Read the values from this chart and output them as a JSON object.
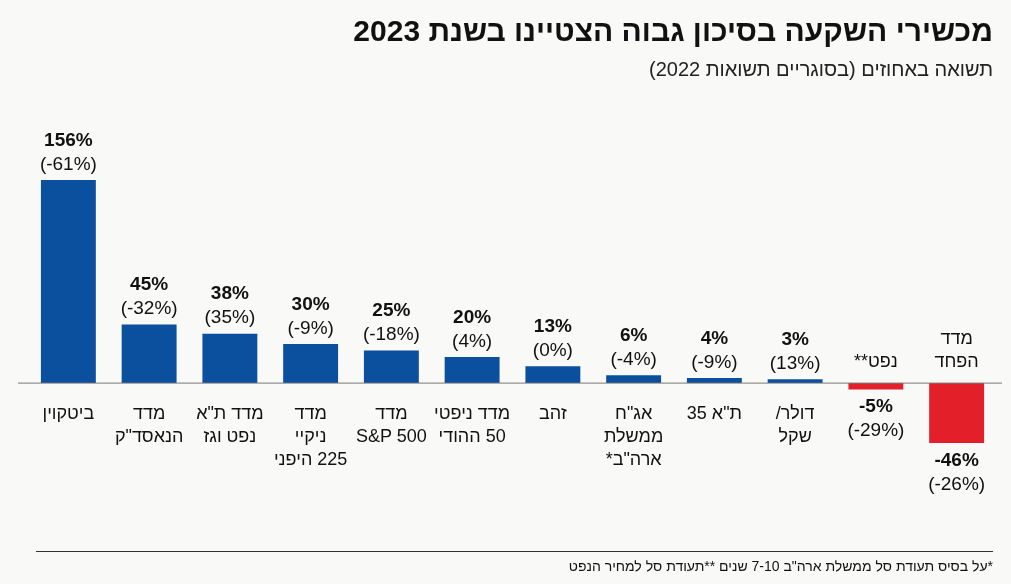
{
  "chart_data": {
    "type": "bar",
    "title": "מכשירי השקעה בסיכון גבוה הצטיינו בשנת 2023",
    "subtitle": "תשואה באחוזים (בסוגריים תשואות 2022)",
    "categories": [
      "ביטקוין",
      "מדד\nהנאסד\"ק",
      "מדד ת\"א\nנפט וגז",
      "מדד\nניקיי\n225 היפני",
      "מדד\nS&P 500",
      "מדד ניפטי\n50 ההודי",
      "זהב",
      "אג\"ח\nממשלת\nארה\"ב*",
      "ת\"א 35",
      "דולר/\nשקל",
      "נפט**",
      "מדד\nהפחד"
    ],
    "values": [
      156,
      45,
      38,
      30,
      25,
      20,
      13,
      6,
      4,
      3,
      -5,
      -46
    ],
    "colors": [
      "#0b4f9f",
      "#0b4f9f",
      "#0b4f9f",
      "#0b4f9f",
      "#0b4f9f",
      "#0b4f9f",
      "#0b4f9f",
      "#0b4f9f",
      "#0b4f9f",
      "#0b4f9f",
      "#e3202a",
      "#e3202a"
    ],
    "value_labels": [
      "156%\n(-61%)",
      "45%\n(-32%)",
      "38%\n(35%)",
      "30%\n(-9%)",
      "25%\n(-18%)",
      "20%\n(4%)",
      "13%\n(0%)",
      "6%\n(-4%)",
      "4%\n(-9%)",
      "3%\n(13%)",
      "-5%\n(-29%)",
      "-46%\n(-26%)"
    ],
    "annotations": [
      "*על בסיס תעודת סל ממשלת ארה\"ב 7-10 שנים **תעודת סל למחיר הנפט"
    ],
    "legend": false
  }
}
